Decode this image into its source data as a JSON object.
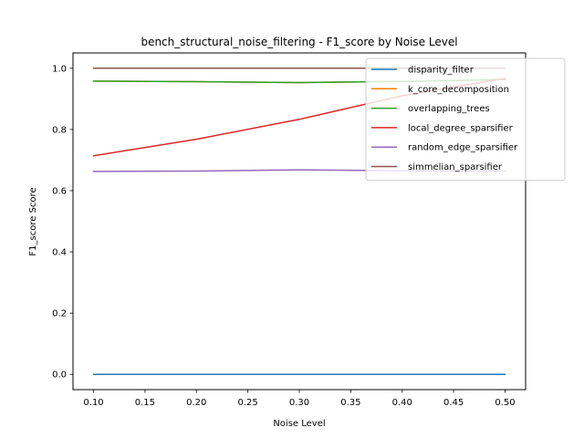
{
  "chart_data": {
    "type": "line",
    "title": "bench_structural_noise_filtering - F1_score by Noise Level",
    "xlabel": "Noise Level",
    "ylabel": "F1_score Score",
    "x": [
      0.1,
      0.2,
      0.3,
      0.4,
      0.5
    ],
    "xlim": [
      0.08,
      0.52
    ],
    "ylim": [
      -0.05,
      1.05
    ],
    "x_ticks": [
      "0.10",
      "0.15",
      "0.20",
      "0.25",
      "0.30",
      "0.35",
      "0.40",
      "0.45",
      "0.50"
    ],
    "y_ticks": [
      "0.0",
      "0.2",
      "0.4",
      "0.6",
      "0.8",
      "1.0"
    ],
    "grid": false,
    "legend_position": "upper-right",
    "series": [
      {
        "name": "disparity_filter",
        "color": "#1f77b4",
        "values": [
          0.0,
          0.0,
          0.0,
          0.0,
          0.0
        ]
      },
      {
        "name": "k_core_decomposition",
        "color": "#ff7f0e",
        "values": [
          0.958,
          0.956,
          0.953,
          0.957,
          0.963
        ]
      },
      {
        "name": "overlapping_trees",
        "color": "#2ca02c",
        "values": [
          0.958,
          0.956,
          0.953,
          0.957,
          0.963
        ]
      },
      {
        "name": "local_degree_sparsifier",
        "color": "#d62728",
        "values": [
          0.714,
          0.768,
          0.833,
          0.91,
          0.967
        ]
      },
      {
        "name": "random_edge_sparsifier",
        "color": "#9467bd",
        "values": [
          0.663,
          0.664,
          0.668,
          0.665,
          0.664
        ]
      },
      {
        "name": "simmelian_sparsifier",
        "color": "#8c564b",
        "values": [
          1.0,
          1.0,
          1.0,
          1.0,
          1.0
        ]
      }
    ]
  }
}
